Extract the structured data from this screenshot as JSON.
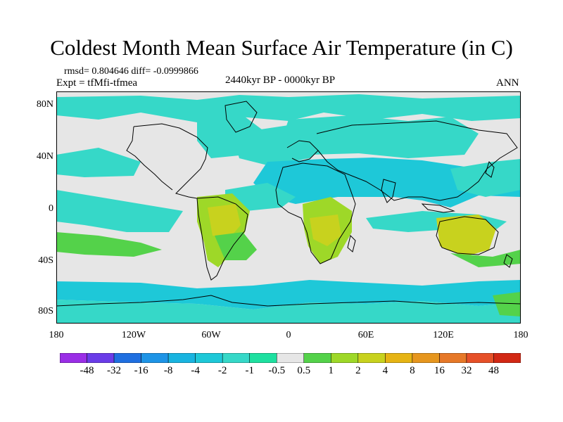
{
  "title": "Coldest Month Mean Surface Air Temperature (in C)",
  "stats": "rmsd= 0.804646 diff= -0.0999866",
  "experiment": "Expt = tfMfi-tfmea",
  "period": "2440kyr BP - 0000kyr BP",
  "season": "ANN",
  "lat_labels": [
    "80N",
    "40N",
    "0",
    "40S",
    "80S"
  ],
  "lon_labels": [
    "180",
    "120W",
    "60W",
    "0",
    "60E",
    "120E",
    "180"
  ],
  "colorbar": {
    "labels": [
      "-48",
      "-32",
      "-16",
      "-8",
      "-4",
      "-2",
      "-1",
      "-0.5",
      "0.5",
      "1",
      "2",
      "4",
      "8",
      "16",
      "32",
      "48"
    ],
    "colors": [
      "#9a2ee6",
      "#6a3ce8",
      "#1f6fe0",
      "#1e94e6",
      "#19b4e0",
      "#1ec8d8",
      "#36d8c8",
      "#1ee0a0",
      "#e6e6e6",
      "#54d24a",
      "#9ed828",
      "#c8d21e",
      "#e6b414",
      "#e6961e",
      "#e67828",
      "#e65028",
      "#d22814"
    ]
  },
  "map_colors": {
    "neutral": "#e6e6e6",
    "cool_teal": "#36d8c8",
    "cool_cyan": "#1ec8d8",
    "warm_green": "#54d24a",
    "warm_yellow": "#9ed828",
    "coast": "#000000"
  }
}
